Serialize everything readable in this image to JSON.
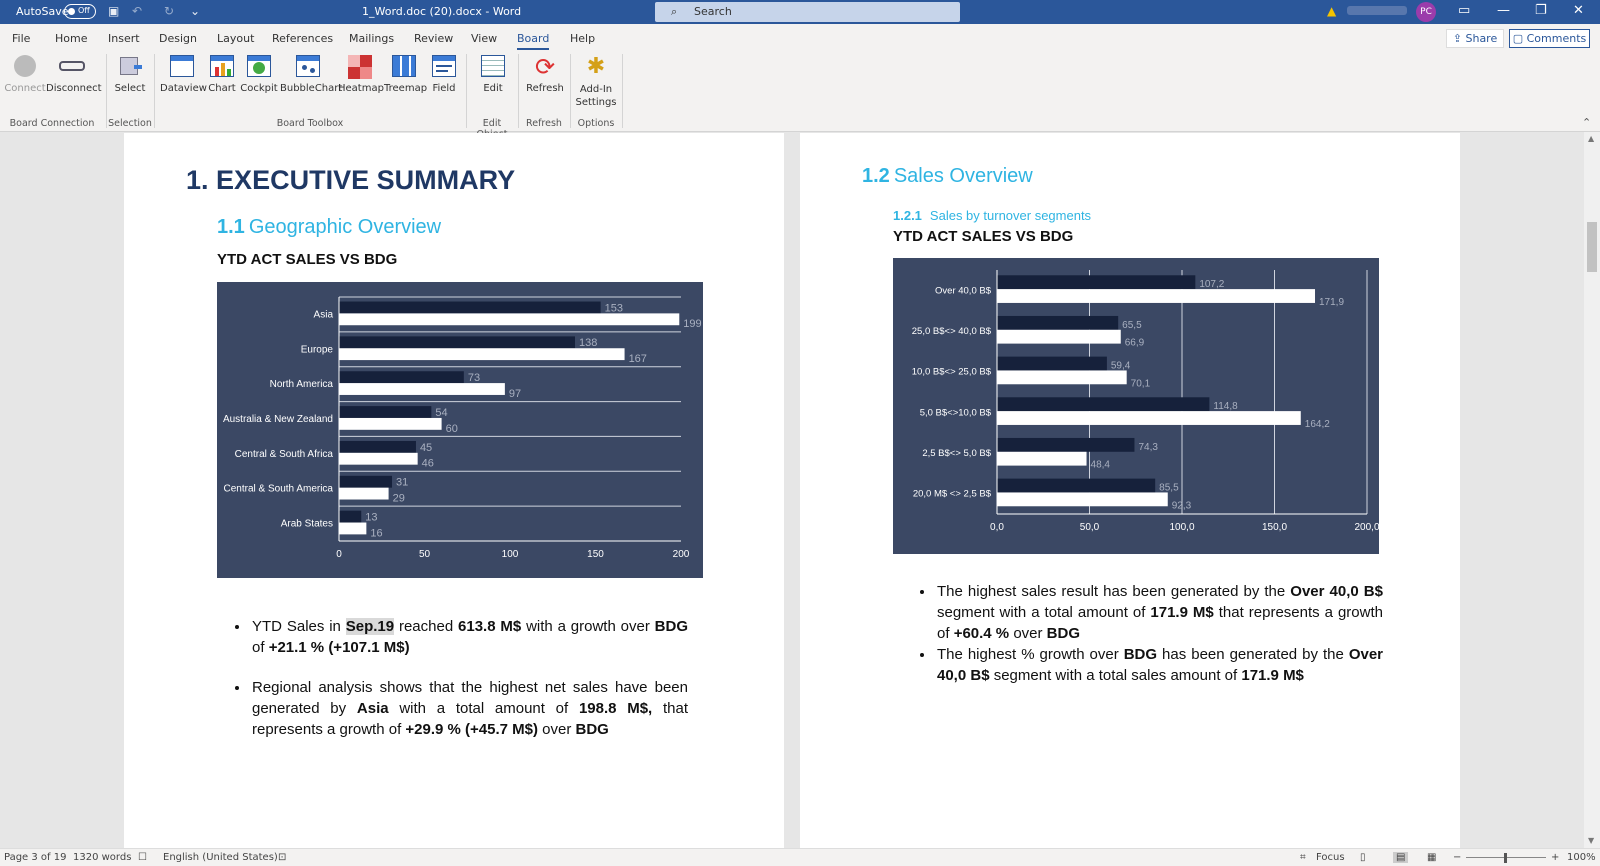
{
  "titlebar": {
    "autosave": "AutoSave",
    "autosave_state": "Off",
    "document_title": "1_Word.doc (20).docx  -  Word",
    "search_placeholder": "Search",
    "user_initials": "PC"
  },
  "ribbon": {
    "tabs": [
      "File",
      "Home",
      "Insert",
      "Design",
      "Layout",
      "References",
      "Mailings",
      "Review",
      "View",
      "Board",
      "Help"
    ],
    "active_tab": "Board",
    "share": "Share",
    "comments": "Comments",
    "buttons": {
      "connect": "Connect",
      "disconnect": "Disconnect",
      "select": "Select",
      "dataview": "Dataview",
      "chart": "Chart",
      "cockpit": "Cockpit",
      "bubblechart": "BubbleChart",
      "heatmap": "Heatmap",
      "treemap": "Treemap",
      "field": "Field",
      "edit": "Edit",
      "refresh": "Refresh",
      "addin": "Add-In Settings"
    },
    "groups": {
      "board_connection": "Board Connection",
      "selection": "Selection",
      "board_toolbox": "Board Toolbox",
      "edit_object": "Edit Object",
      "refresh": "Refresh",
      "options": "Options"
    }
  },
  "left_page": {
    "h1_num": "1.",
    "h1_text": "EXECUTIVE SUMMARY",
    "h2_num": "1.1",
    "h2_text": "Geographic Overview",
    "chart_title": "YTD ACT SALES VS BDG",
    "bullet1": {
      "a": "YTD Sales in ",
      "b": "Sep.19",
      "c": " reached ",
      "d": "613.8 M$",
      "e": " with a growth over ",
      "f": "BDG",
      "g": " of ",
      "h": "+21.1 % (+107.1 M$)"
    },
    "bullet2": {
      "a": "Regional analysis shows that the highest net sales have been generated by ",
      "b": "Asia",
      "c": " with a total amount of ",
      "d": "198.8 M$,",
      "e": " that represents a growth of ",
      "f": "+29.9 % (+45.7 M$)",
      "g": " over ",
      "h": "BDG"
    }
  },
  "right_page": {
    "h2_num": "1.2",
    "h2_text": "Sales Overview",
    "h3_num": "1.2.1",
    "h3_text": "Sales by turnover segments",
    "chart_title": "YTD ACT SALES VS BDG",
    "bullet1": {
      "a": "The highest sales result has been generated by the ",
      "b": "Over 40,0 B$",
      "c": " segment with a total amount of ",
      "d": "171.9 M$",
      "e": " that represents a growth of ",
      "f": "+60.4 %",
      "g": " over ",
      "h": "BDG"
    },
    "bullet2": {
      "a": "The highest % growth over ",
      "b": "BDG",
      "c": " has been generated by the ",
      "d": "Over 40,0 B$",
      "e": " segment with a total sales amount of ",
      "f": "171.9 M$"
    }
  },
  "status": {
    "page": "Page 3 of 19",
    "words": "1320 words",
    "language": "English (United States)",
    "focus": "Focus",
    "zoom": "100%"
  },
  "colors": {
    "chart_bg": "#3b4864",
    "bar_dark": "#16213b",
    "bar_light": "#ffffff",
    "heading": "#1f3864",
    "accent": "#2fb4e2"
  },
  "chart_data": [
    {
      "type": "bar",
      "orientation": "horizontal",
      "categories": [
        "Asia",
        "Europe",
        "North America",
        "Australia & New Zealand",
        "Central & South Africa",
        "Central & South America",
        "Arab States"
      ],
      "series": [
        {
          "values": [
            153,
            138,
            73,
            54,
            45,
            31,
            13
          ]
        },
        {
          "values": [
            199,
            167,
            97,
            60,
            46,
            29,
            16
          ]
        }
      ],
      "xticks": [
        "0",
        "50",
        "100",
        "150",
        "200"
      ],
      "xlim": [
        0,
        200
      ],
      "labels_a": [
        "153",
        "138",
        "73",
        "54",
        "45",
        "31",
        "13"
      ],
      "labels_b": [
        "199",
        "167",
        "97",
        "60",
        "46",
        "29",
        "16"
      ]
    },
    {
      "type": "bar",
      "orientation": "horizontal",
      "categories": [
        "Over 40,0 B$",
        "25,0 B$<> 40,0 B$",
        "10,0 B$<> 25,0 B$",
        "5,0 B$<>10,0 B$",
        "2,5 B$<> 5,0 B$",
        "20,0 M$ <> 2,5 B$"
      ],
      "series": [
        {
          "values": [
            107.2,
            65.5,
            59.4,
            114.8,
            74.3,
            85.5
          ]
        },
        {
          "values": [
            171.9,
            66.9,
            70.1,
            164.2,
            48.4,
            92.3
          ]
        }
      ],
      "xticks": [
        "0,0",
        "50,0",
        "100,0",
        "150,0",
        "200,0"
      ],
      "xlim": [
        0,
        200
      ],
      "labels_a": [
        "107,2",
        "65,5",
        "59,4",
        "114,8",
        "74,3",
        "85,5"
      ],
      "labels_b": [
        "171,9",
        "66,9",
        "70,1",
        "164,2",
        "48,4",
        "92,3"
      ]
    }
  ]
}
